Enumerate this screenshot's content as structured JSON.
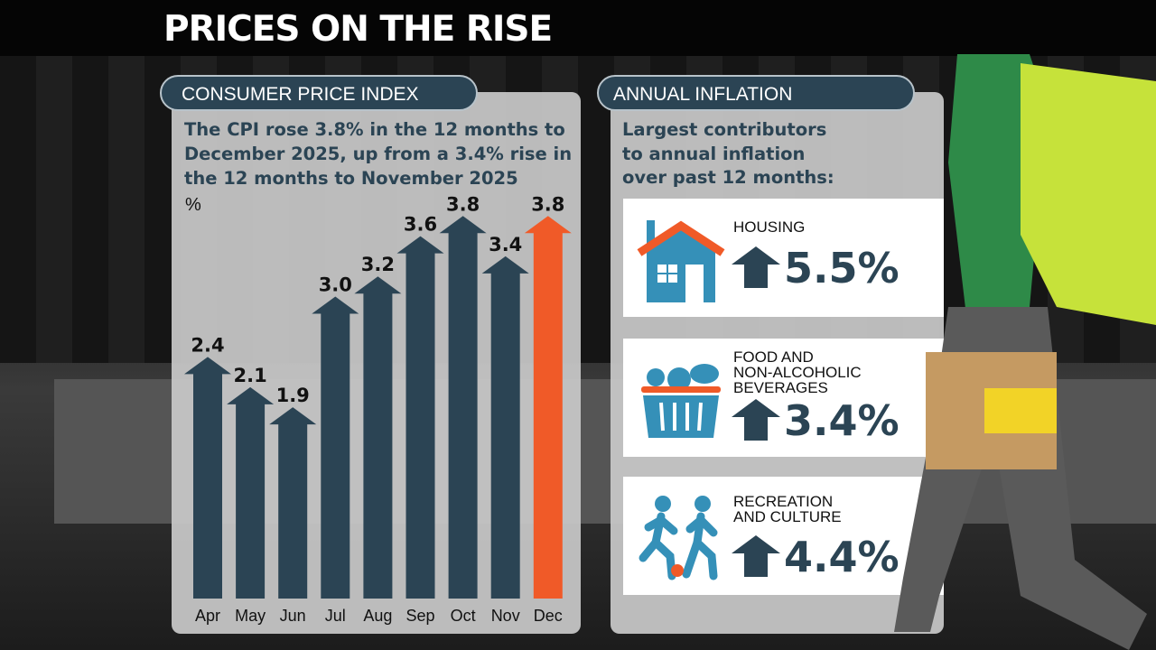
{
  "title": "PRICES ON THE RISE",
  "left_panel": {
    "header": "CONSUMER PRICE INDEX",
    "lines": [
      "The CPI rose 3.8% in the 12 months to",
      "December 2025, up from a 3.4% rise in",
      "the 12 months to November 2025"
    ]
  },
  "right_panel": {
    "header": "ANNUAL INFLATION",
    "lines": [
      "Largest contributors",
      "to annual inflation",
      "over past 12 months:"
    ],
    "items": [
      {
        "label_lines": [
          "HOUSING"
        ],
        "value": "5.5%",
        "icon": "house-icon"
      },
      {
        "label_lines": [
          "FOOD AND",
          "NON-ALCOHOLIC",
          "BEVERAGES"
        ],
        "value": "3.4%",
        "icon": "grocery-basket-icon"
      },
      {
        "label_lines": [
          "RECREATION",
          "AND CULTURE"
        ],
        "value": "4.4%",
        "icon": "people-playing-ball-icon"
      }
    ]
  },
  "colors": {
    "navy": "#2b4454",
    "orange": "#f05a28",
    "blue": "#3590b8"
  },
  "chart_data": {
    "type": "bar",
    "ylabel": "%",
    "categories": [
      "Apr",
      "May",
      "Jun",
      "Jul",
      "Aug",
      "Sep",
      "Oct",
      "Nov",
      "Dec"
    ],
    "values": [
      2.4,
      2.1,
      1.9,
      3.0,
      3.2,
      3.6,
      3.8,
      3.4,
      3.8
    ],
    "value_labels": [
      "2.4",
      "2.1",
      "1.9",
      "3.0",
      "3.2",
      "3.6",
      "3.8",
      "3.4",
      "3.8"
    ],
    "highlight": "Dec",
    "grid": false
  }
}
